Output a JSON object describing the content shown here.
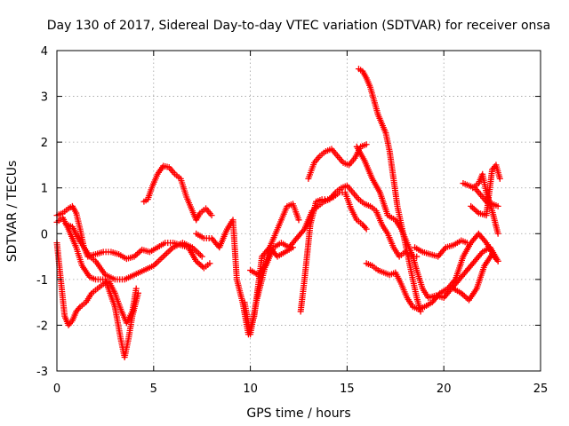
{
  "chart_data": {
    "type": "scatter",
    "title": "Day 130 of 2017, Sidereal Day-to-day VTEC variation (SDTVAR) for receiver onsa",
    "xlabel": "GPS time / hours",
    "ylabel": "SDTVAR / TECUs",
    "xlim": [
      0,
      25
    ],
    "ylim": [
      -3,
      4
    ],
    "xticks": [
      "0",
      "5",
      "10",
      "15",
      "20",
      "25"
    ],
    "yticks": [
      "-3",
      "-2",
      "-1",
      "0",
      "1",
      "2",
      "3",
      "4"
    ],
    "grid": true,
    "marker": "plus",
    "colors": {
      "series": "#ff0000",
      "grid": "#a0a0a0",
      "axis": "#000000"
    },
    "series": [
      {
        "x": [
          0,
          0.3,
          0.6,
          0.8,
          1.0,
          1.2,
          1.4,
          1.6,
          2.0,
          2.4,
          2.8,
          3.2,
          3.6,
          4.0,
          4.4,
          4.8,
          5.2,
          5.6,
          6.0,
          6.4,
          6.8,
          7.2,
          7.6,
          7.9
        ],
        "y": [
          0.4,
          0.45,
          0.55,
          0.6,
          0.45,
          0.1,
          -0.3,
          -0.5,
          -0.45,
          -0.4,
          -0.4,
          -0.45,
          -0.55,
          -0.5,
          -0.35,
          -0.4,
          -0.3,
          -0.2,
          -0.2,
          -0.25,
          -0.3,
          -0.6,
          -0.75,
          -0.65
        ]
      },
      {
        "x": [
          0,
          0.2,
          0.4,
          0.6,
          0.8,
          1.0,
          1.2,
          1.5,
          1.8,
          2.1,
          2.4,
          2.7,
          3.0,
          3.3,
          3.6,
          3.9,
          4.1
        ],
        "y": [
          -0.2,
          -1.0,
          -1.8,
          -2.0,
          -1.9,
          -1.7,
          -1.6,
          -1.5,
          -1.3,
          -1.2,
          -1.1,
          -1.05,
          -1.3,
          -1.65,
          -1.95,
          -1.7,
          -1.2
        ]
      },
      {
        "x": [
          0,
          0.3,
          0.6,
          1.0,
          1.3,
          1.7,
          2.0,
          2.5,
          3.0,
          3.3,
          3.5,
          3.7,
          3.9,
          4.2
        ],
        "y": [
          0.25,
          0.35,
          0.1,
          -0.3,
          -0.7,
          -0.95,
          -1.0,
          -1.0,
          -1.6,
          -2.3,
          -2.7,
          -2.3,
          -1.8,
          -1.3
        ]
      },
      {
        "x": [
          0.5,
          0.8,
          1.1,
          1.4,
          1.7,
          2.0,
          2.5,
          3.0,
          3.5,
          4.0,
          4.5,
          5.0,
          5.5,
          6.0,
          6.5,
          7.0,
          7.5
        ],
        "y": [
          0.2,
          0.15,
          -0.1,
          -0.3,
          -0.5,
          -0.6,
          -0.9,
          -1.0,
          -1.0,
          -0.9,
          -0.8,
          -0.7,
          -0.5,
          -0.3,
          -0.2,
          -0.3,
          -0.5
        ]
      },
      {
        "x": [
          4.5,
          4.7,
          4.9,
          5.2,
          5.5,
          5.8,
          6.1,
          6.4,
          6.7,
          7.0,
          7.2,
          7.4,
          7.7,
          8.0
        ],
        "y": [
          0.7,
          0.75,
          1.0,
          1.3,
          1.48,
          1.45,
          1.3,
          1.2,
          0.8,
          0.5,
          0.3,
          0.45,
          0.55,
          0.4
        ]
      },
      {
        "x": [
          7.2,
          7.6,
          8.0,
          8.4,
          8.8,
          9.1,
          9.3,
          9.6,
          9.9,
          10.2,
          10.6,
          11.0,
          11.4,
          11.8,
          12.2
        ],
        "y": [
          0.0,
          -0.1,
          -0.1,
          -0.3,
          0.1,
          0.3,
          -1.0,
          -1.5,
          -2.2,
          -1.8,
          -0.5,
          -0.3,
          -0.5,
          -0.4,
          -0.3
        ]
      },
      {
        "x": [
          9.7,
          10.0,
          10.3,
          10.6,
          11.0,
          11.3,
          11.6,
          11.9,
          12.2,
          12.5
        ],
        "y": [
          -1.5,
          -2.2,
          -1.5,
          -1.0,
          -0.3,
          0.0,
          0.3,
          0.6,
          0.65,
          0.3
        ]
      },
      {
        "x": [
          10.0,
          10.4,
          10.8,
          11.2,
          11.6,
          12.0,
          12.4,
          12.8,
          13.0,
          13.2,
          13.5,
          13.8,
          14.1,
          14.4,
          14.7,
          15.0,
          15.3,
          15.6,
          15.9,
          16.2,
          16.5,
          16.8,
          17.1,
          17.4,
          17.7,
          18.0,
          18.3,
          18.6
        ],
        "y": [
          -0.8,
          -0.9,
          -0.7,
          -0.3,
          -0.2,
          -0.3,
          -0.1,
          0.1,
          0.3,
          0.5,
          0.6,
          0.7,
          0.75,
          0.9,
          1.0,
          1.05,
          0.9,
          0.75,
          0.65,
          0.6,
          0.5,
          0.2,
          0.0,
          -0.3,
          -0.5,
          -0.4,
          -0.5,
          -0.5
        ]
      },
      {
        "x": [
          12.6,
          12.8,
          13.1,
          13.4,
          13.7,
          14.0,
          14.3,
          14.6,
          14.9,
          15.2,
          15.5,
          15.8,
          16.0
        ],
        "y": [
          -1.7,
          -1.0,
          0.2,
          0.7,
          0.75,
          0.75,
          0.8,
          0.9,
          0.9,
          0.55,
          0.3,
          0.2,
          0.1
        ]
      },
      {
        "x": [
          13.0,
          13.3,
          13.6,
          13.9,
          14.2,
          14.5,
          14.8,
          15.1,
          15.4,
          15.7,
          16.0
        ],
        "y": [
          1.2,
          1.55,
          1.7,
          1.8,
          1.85,
          1.7,
          1.55,
          1.5,
          1.65,
          1.9,
          1.95
        ]
      },
      {
        "x": [
          15.5,
          15.9,
          16.3,
          16.7,
          17.1,
          17.5,
          17.8,
          18.1,
          18.4,
          18.6,
          18.9,
          19.2,
          19.6,
          20.0,
          20.4,
          20.8,
          21.2,
          21.6,
          22.0,
          22.4,
          22.8
        ],
        "y": [
          1.9,
          1.6,
          1.2,
          0.9,
          0.4,
          0.3,
          0.1,
          -0.2,
          -0.5,
          -0.8,
          -1.2,
          -1.4,
          -1.35,
          -1.4,
          -1.2,
          -1.0,
          -0.8,
          -0.6,
          -0.4,
          -0.3,
          -0.6
        ]
      },
      {
        "x": [
          15.6,
          15.8,
          16.0,
          16.2,
          16.4,
          16.6,
          16.8,
          17.0,
          17.2,
          17.4,
          17.6,
          17.8,
          18.0,
          18.2,
          18.4,
          18.6,
          18.8
        ],
        "y": [
          3.6,
          3.55,
          3.4,
          3.2,
          2.9,
          2.6,
          2.4,
          2.2,
          1.8,
          1.2,
          0.6,
          0.2,
          -0.2,
          -0.6,
          -1.0,
          -1.4,
          -1.7
        ]
      },
      {
        "x": [
          16.0,
          16.3,
          16.6,
          16.9,
          17.2,
          17.5,
          17.8,
          18.1,
          18.4,
          18.7,
          19.0,
          19.4,
          19.8,
          20.2,
          20.6,
          21.0,
          21.4,
          21.8,
          22.2,
          22.6
        ],
        "y": [
          -0.65,
          -0.7,
          -0.8,
          -0.85,
          -0.9,
          -0.85,
          -1.1,
          -1.4,
          -1.6,
          -1.65,
          -1.6,
          -1.5,
          -1.3,
          -1.2,
          -1.0,
          -0.5,
          -0.2,
          0.0,
          -0.2,
          -0.5
        ]
      },
      {
        "x": [
          18.5,
          18.9,
          19.3,
          19.7,
          20.1,
          20.5,
          20.9,
          21.2
        ],
        "y": [
          -0.3,
          -0.4,
          -0.45,
          -0.5,
          -0.3,
          -0.25,
          -0.15,
          -0.2
        ]
      },
      {
        "x": [
          21.0,
          21.3,
          21.6,
          21.9,
          22.2,
          22.5,
          22.8
        ],
        "y": [
          1.1,
          1.05,
          1.0,
          0.85,
          0.7,
          0.65,
          0.6
        ]
      },
      {
        "x": [
          21.5,
          21.8,
          22.0,
          22.2,
          22.5,
          22.8
        ],
        "y": [
          1.0,
          1.1,
          1.3,
          0.9,
          0.5,
          0.0
        ]
      },
      {
        "x": [
          21.4,
          21.8,
          22.2,
          22.5,
          22.7,
          22.9
        ],
        "y": [
          0.6,
          0.45,
          0.4,
          1.4,
          1.5,
          1.2
        ]
      },
      {
        "x": [
          20.5,
          20.9,
          21.3,
          21.7,
          22.1,
          22.5,
          22.8
        ],
        "y": [
          -1.2,
          -1.3,
          -1.45,
          -1.2,
          -0.7,
          -0.45,
          -0.6
        ]
      }
    ]
  }
}
